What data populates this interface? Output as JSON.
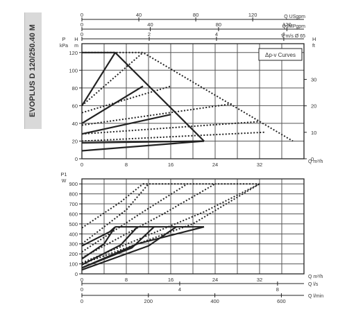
{
  "side_title": "EVOPLUS D 120/250.40 M",
  "chart_data": [
    {
      "type": "line",
      "title": "",
      "legend_box": "Δp-v Curves",
      "x_axis": {
        "label": "Q m³/h",
        "ticks": [
          0,
          8,
          16,
          24,
          32
        ],
        "range": [
          0,
          40
        ]
      },
      "y_left": {
        "label_top": "P",
        "label_units": "kPa",
        "ticks": [
          0,
          20,
          40,
          60,
          80,
          100,
          120
        ],
        "range": [
          0,
          130
        ]
      },
      "y_left_inner": {
        "label_top": "H",
        "label_units": "m"
      },
      "y_right": {
        "label_top": "H",
        "label_units": "ft",
        "ticks": [
          0,
          10,
          20,
          30
        ]
      },
      "top_axes": [
        {
          "label": "Q USgpm",
          "ticks": [
            "0",
            "40",
            "80",
            "120"
          ]
        },
        {
          "label": "Q IMPgpm",
          "ticks": [
            "0",
            "40",
            "80",
            "120"
          ]
        },
        {
          "label": "V m/s Ø 65",
          "ticks": [
            "0",
            "2",
            "4",
            "6"
          ]
        }
      ],
      "series": [
        {
          "style": "solid",
          "points": [
            [
              0,
              120
            ],
            [
              6,
              120
            ],
            [
              22,
              20
            ]
          ]
        },
        {
          "style": "solid",
          "points": [
            [
              0,
              60
            ],
            [
              6,
              120
            ]
          ]
        },
        {
          "style": "solid",
          "points": [
            [
              0,
              40
            ],
            [
              11,
              82
            ]
          ]
        },
        {
          "style": "solid",
          "points": [
            [
              0,
              28
            ],
            [
              16,
              50
            ]
          ]
        },
        {
          "style": "solid",
          "points": [
            [
              0,
              18
            ],
            [
              22,
              20
            ]
          ]
        },
        {
          "style": "solid",
          "points": [
            [
              0,
              9
            ],
            [
              22,
              20
            ]
          ]
        },
        {
          "style": "dotted",
          "points": [
            [
              0,
              120
            ],
            [
              11,
              120
            ],
            [
              38,
              20
            ]
          ]
        },
        {
          "style": "dotted",
          "points": [
            [
              0,
              60
            ],
            [
              11,
              120
            ]
          ]
        },
        {
          "style": "dotted",
          "points": [
            [
              0,
              52
            ],
            [
              16,
              82
            ]
          ]
        },
        {
          "style": "dotted",
          "points": [
            [
              0,
              38
            ],
            [
              27,
              62
            ]
          ]
        },
        {
          "style": "dotted",
          "points": [
            [
              0,
              28
            ],
            [
              32,
              42
            ]
          ]
        },
        {
          "style": "dotted",
          "points": [
            [
              0,
              20
            ],
            [
              33,
              30
            ]
          ]
        }
      ]
    },
    {
      "type": "line",
      "title": "",
      "x_axis": {
        "label": "Q m³/h",
        "ticks": [
          0,
          8,
          16,
          24,
          32
        ],
        "range": [
          0,
          40
        ]
      },
      "y_left": {
        "label_top": "P1",
        "label_units": "W",
        "ticks": [
          0,
          100,
          200,
          300,
          400,
          500,
          600,
          700,
          800,
          900
        ],
        "range": [
          0,
          950
        ]
      },
      "bottom_axes": [
        {
          "label": "Q l/s",
          "ticks": [
            "0",
            "4",
            "8"
          ]
        },
        {
          "label": "Q l/min",
          "ticks": [
            "0",
            "200",
            "400",
            "600"
          ]
        }
      ],
      "series": [
        {
          "style": "solid",
          "points": [
            [
              0,
              280
            ],
            [
              5,
              420
            ],
            [
              6,
              470
            ]
          ]
        },
        {
          "style": "solid",
          "points": [
            [
              6,
              470
            ],
            [
              22,
              470
            ]
          ]
        },
        {
          "style": "solid",
          "points": [
            [
              0,
              60
            ],
            [
              10,
              300
            ],
            [
              22,
              470
            ]
          ]
        },
        {
          "style": "solid",
          "points": [
            [
              0,
              150
            ],
            [
              4,
              300
            ],
            [
              6,
              470
            ]
          ]
        },
        {
          "style": "solid",
          "points": [
            [
              0,
              90
            ],
            [
              7,
              290
            ],
            [
              10,
              470
            ]
          ]
        },
        {
          "style": "solid",
          "points": [
            [
              0,
              60
            ],
            [
              9,
              260
            ],
            [
              13,
              470
            ]
          ]
        },
        {
          "style": "solid",
          "points": [
            [
              0,
              40
            ],
            [
              12,
              280
            ],
            [
              17,
              470
            ]
          ]
        },
        {
          "style": "dotted",
          "points": [
            [
              0,
              460
            ],
            [
              7,
              720
            ],
            [
              11,
              900
            ]
          ]
        },
        {
          "style": "dotted",
          "points": [
            [
              11,
              900
            ],
            [
              32,
              900
            ]
          ]
        },
        {
          "style": "dotted",
          "points": [
            [
              0,
              100
            ],
            [
              20,
              500
            ],
            [
              32,
              900
            ]
          ]
        },
        {
          "style": "dotted",
          "points": [
            [
              0,
              300
            ],
            [
              8,
              640
            ],
            [
              12,
              900
            ]
          ]
        },
        {
          "style": "dotted",
          "points": [
            [
              0,
              220
            ],
            [
              11,
              620
            ],
            [
              19,
              900
            ]
          ]
        },
        {
          "style": "dotted",
          "points": [
            [
              0,
              160
            ],
            [
              15,
              610
            ],
            [
              24,
              900
            ]
          ]
        },
        {
          "style": "dotted",
          "points": [
            [
              0,
              110
            ],
            [
              22,
              620
            ],
            [
              32,
              900
            ]
          ]
        }
      ]
    }
  ]
}
